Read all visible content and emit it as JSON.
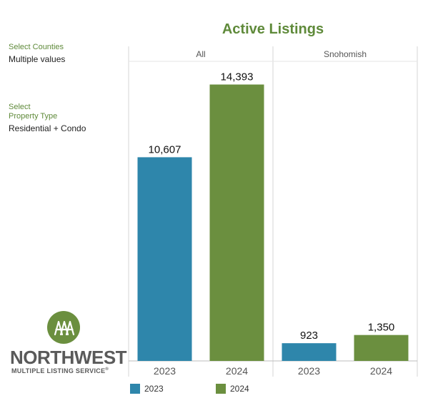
{
  "filters": {
    "counties_label": "Select Counties",
    "counties_value": "Multiple values",
    "property_label_line1": "Select",
    "property_label_line2": "Property Type",
    "property_value": "Residential + Condo"
  },
  "logo": {
    "name": "NORTHWEST",
    "subtitle": "MULTIPLE LISTING SERVICE",
    "registered": "®"
  },
  "colors": {
    "series_2023": "#2e86ab",
    "series_2024": "#6b8f3f",
    "title": "#5f8a3a"
  },
  "chart_data": {
    "type": "bar",
    "title": "Active Listings",
    "panels": [
      {
        "name": "All",
        "categories": [
          "2023",
          "2024"
        ],
        "values": [
          10607,
          14393
        ],
        "labels": [
          "10,607",
          "14,393"
        ]
      },
      {
        "name": "Snohomish",
        "categories": [
          "2023",
          "2024"
        ],
        "values": [
          923,
          1350
        ],
        "labels": [
          "923",
          "1,350"
        ]
      }
    ],
    "ylim": [
      0,
      15600
    ],
    "grid": false,
    "legend": {
      "position": "bottom",
      "items": [
        {
          "name": "2023",
          "color": "#2e86ab"
        },
        {
          "name": "2024",
          "color": "#6b8f3f"
        }
      ]
    }
  }
}
